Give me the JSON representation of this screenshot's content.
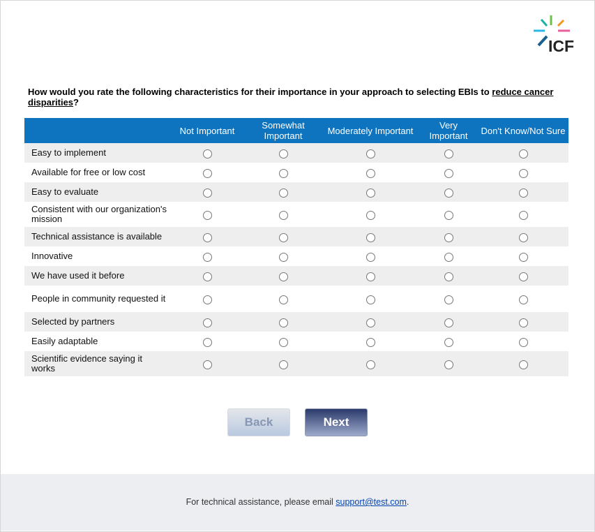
{
  "logo_text": "ICF",
  "question": {
    "text": "How would you rate the following characteristics for their importance in your approach to selecting EBIs to ",
    "link": "reduce cancer disparities",
    "end": "?"
  },
  "columns": [
    "Not Important",
    "Somewhat Important",
    "Moderately Important",
    "Very Important",
    "Don't Know/Not Sure"
  ],
  "rows": [
    "Easy to implement",
    "Available for free or low cost",
    "Easy to evaluate",
    "Consistent with our organization's mission",
    "Technical assistance is available",
    "Innovative",
    "We have used it before",
    "People in community requested it",
    "Selected by partners",
    "Easily adaptable",
    "Scientific evidence saying it works"
  ],
  "buttons": {
    "back": "Back",
    "next": "Next"
  },
  "footer": {
    "text": "For technical assistance, please email ",
    "email": "support@test.com",
    "end": "."
  },
  "colors": {
    "header": "#0f74c0",
    "next": "#2c3a6c"
  }
}
